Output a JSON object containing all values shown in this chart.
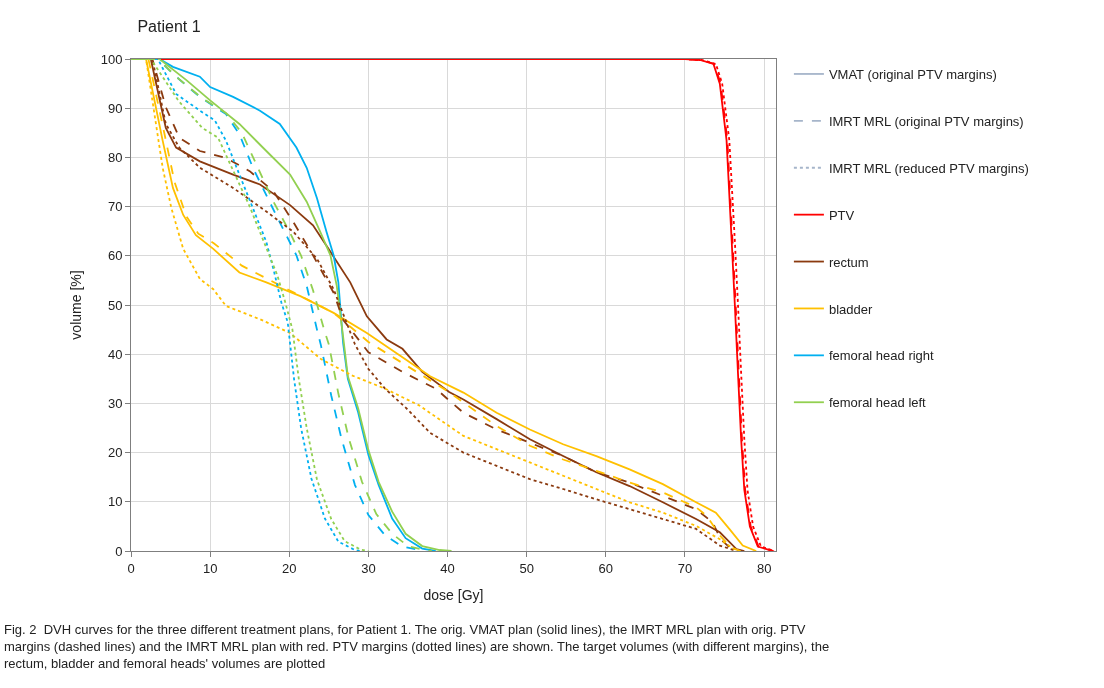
{
  "chart_data": {
    "type": "line",
    "title": "Patient 1",
    "xlabel": "dose [Gy]",
    "ylabel": "volume [%]",
    "xlim": [
      0,
      81.5
    ],
    "xticks": [
      0,
      10,
      20,
      30,
      40,
      50,
      60,
      70,
      80
    ],
    "ylim": [
      0,
      100
    ],
    "yticks": [
      0,
      10,
      20,
      30,
      40,
      50,
      60,
      70,
      80,
      90,
      100
    ],
    "grid": true,
    "legend": "right",
    "marker": "none",
    "annotations": [
      "Fig. 2  DVH curves for the three different treatment plans, for Patient 1. The orig. VMAT plan (solid lines), the IMRT MRL plan with orig. PTV margins (dashed lines) and the IMRT MRL plan with red. PTV margins (dotted lines) are shown. The target volumes (with different margins), the rectum, bladder and femoral heads' volumes are plotted"
    ],
    "series": [
      {
        "name": "VMAT (original PTV margins)",
        "color": "#a6b5ca",
        "line_style": "solid"
      },
      {
        "name": "IMRT MRL (original PTV margins)",
        "color": "#a6b5ca",
        "line_style": "dashed"
      },
      {
        "name": "IMRT MRL (reduced PTV margins)",
        "color": "#a6b5ca",
        "line_style": "dotted"
      },
      {
        "name": "PTV",
        "color": "#ff0000",
        "line_style": "solid",
        "x": [
          0,
          70,
          71.9,
          73.6,
          74.4,
          75.25,
          75.9,
          76.3,
          76.7,
          77.1,
          77.5,
          78.2,
          79.2,
          81.1
        ],
        "values": [
          100,
          100,
          99.8,
          99,
          95,
          83.5,
          63,
          50,
          36,
          22.6,
          12.4,
          5,
          0.9,
          0
        ]
      },
      {
        "name": "rectum",
        "color": "#8b3a0f",
        "line_style": "solid",
        "x": [
          0,
          2.5,
          4.4,
          5.7,
          8.7,
          12.9,
          16.3,
          20.1,
          23,
          25.2,
          27.7,
          29.8,
          32.3,
          34.3,
          36.8,
          40.2,
          42,
          46.2,
          50.4,
          54.6,
          58.8,
          63,
          67.2,
          71.4,
          74.4,
          76.5,
          77.5
        ],
        "values": [
          100,
          100,
          86,
          82,
          79.2,
          76.5,
          74.5,
          70.3,
          66.2,
          60.8,
          54.6,
          47.7,
          43,
          41.1,
          36.4,
          32.3,
          30.8,
          26.8,
          22.7,
          19.3,
          16,
          13.2,
          9.9,
          6.5,
          3.8,
          0.4,
          0
        ]
      },
      {
        "name": "bladder",
        "color": "#ffc000",
        "line_style": "solid",
        "x": [
          0,
          1.9,
          4,
          5.3,
          6.6,
          8.2,
          10.4,
          13.7,
          17.1,
          21.4,
          25.6,
          29.8,
          34.3,
          37.8,
          42,
          46.2,
          50.4,
          54.6,
          58.8,
          63,
          67.2,
          71.4,
          73.9,
          75.6,
          77.3,
          79
        ],
        "values": [
          100,
          100,
          83.4,
          73.8,
          68.3,
          64.2,
          61.4,
          56.6,
          54.6,
          51.8,
          48.4,
          44.3,
          39.4,
          35.5,
          32.2,
          28.1,
          24.7,
          21.7,
          19.3,
          16.6,
          13.6,
          9.9,
          7.8,
          4.5,
          1.1,
          0
        ]
      },
      {
        "name": "femoral head right",
        "color": "#00b0f0",
        "line_style": "solid",
        "x": [
          0,
          3.6,
          5.3,
          8.7,
          10,
          12.9,
          16.3,
          18.8,
          20.9,
          22.2,
          23.5,
          24.7,
          25.6,
          26.2,
          26.8,
          27.4,
          28.7,
          30,
          31.3,
          33,
          34.7,
          36.8,
          38.5
        ],
        "values": [
          100,
          100,
          98.4,
          96.4,
          94.3,
          92.3,
          89.5,
          86.8,
          82,
          77.9,
          71.7,
          64.9,
          60.1,
          54.6,
          42.3,
          35,
          28.2,
          19.5,
          13.4,
          6.6,
          2.6,
          0.5,
          0
        ]
      },
      {
        "name": "femoral head left",
        "color": "#92d050",
        "line_style": "solid",
        "x": [
          0,
          3.6,
          7,
          10,
          13.7,
          17.1,
          20.1,
          22.2,
          23.9,
          25.2,
          26,
          26.8,
          27.4,
          28.7,
          30,
          31.3,
          33,
          34.7,
          36.8,
          39,
          40.5
        ],
        "values": [
          100,
          100,
          95.7,
          91.6,
          86.8,
          81.3,
          76.5,
          71,
          64.9,
          60.1,
          53.9,
          43.6,
          35.5,
          29,
          20.5,
          14,
          8,
          3.5,
          1,
          0.2,
          0
        ]
      },
      {
        "color": "#ff0000",
        "line_style": "dashed",
        "x": [
          0,
          70,
          72,
          73.7,
          74.5,
          75.35,
          76,
          76.4,
          76.8,
          77.2,
          77.6,
          78.3,
          79.3,
          81.2
        ],
        "values": [
          100,
          100,
          99.8,
          99,
          95,
          83.5,
          63,
          50,
          36,
          22.6,
          12.4,
          5,
          0.9,
          0
        ]
      },
      {
        "color": "#8b3a0f",
        "line_style": "dashed",
        "x": [
          0,
          2.7,
          4.4,
          6.1,
          8.7,
          12,
          15,
          18,
          20.5,
          23,
          25.6,
          26.8,
          30,
          34.3,
          38.5,
          42,
          46.2,
          50.4,
          54.6,
          58.8,
          63,
          67.2,
          71.4,
          73.5,
          74.5,
          75.8,
          77
        ],
        "values": [
          100,
          100,
          90.2,
          84,
          81.3,
          79.9,
          77.2,
          73.1,
          66.9,
          60.1,
          52.5,
          47,
          40.4,
          36.4,
          33,
          28.1,
          24.7,
          22,
          19.3,
          16,
          13.9,
          11.2,
          8.5,
          5.8,
          2.4,
          0.5,
          0
        ]
      },
      {
        "color": "#ffc000",
        "line_style": "dashed",
        "x": [
          0,
          2.2,
          4.2,
          5.5,
          7,
          8.5,
          10.5,
          14,
          20,
          25.6,
          30,
          35,
          40,
          46.2,
          50.4,
          54.6,
          58.8,
          63,
          67.2,
          71.4,
          72.7,
          74.5,
          75.8,
          77
        ],
        "values": [
          100,
          100,
          85,
          75,
          68,
          64.5,
          62.5,
          58,
          53,
          48.4,
          42.5,
          37.5,
          32.5,
          25.4,
          21.4,
          18.6,
          16.3,
          13.9,
          11.9,
          8.9,
          7.2,
          3,
          0.7,
          0
        ]
      },
      {
        "color": "#00b0f0",
        "line_style": "dashed",
        "x": [
          0,
          3.4,
          5.7,
          8.7,
          12,
          13.7,
          15.4,
          17.5,
          19.2,
          20.9,
          22.2,
          23.5,
          24,
          25.3,
          26.6,
          28.3,
          30,
          32.1,
          34.3,
          36.4,
          37
        ],
        "values": [
          100,
          100,
          96.4,
          92.3,
          88.8,
          84.7,
          77.9,
          71,
          65.5,
          60.1,
          53.9,
          45,
          41.8,
          31.6,
          22.8,
          13.4,
          7.3,
          3.2,
          0.9,
          0.2,
          0
        ]
      },
      {
        "color": "#92d050",
        "line_style": "dashed",
        "x": [
          0,
          3.4,
          6,
          9,
          12,
          14,
          16,
          18,
          20,
          21.5,
          23,
          24.4,
          25,
          26.2,
          27.5,
          29.2,
          31,
          33,
          35,
          37,
          38
        ],
        "values": [
          100,
          100,
          96,
          92,
          89,
          85,
          78,
          71,
          65,
          60,
          53,
          45,
          42,
          32,
          23,
          14,
          7.5,
          3.5,
          1,
          0.2,
          0
        ]
      },
      {
        "color": "#ff0000",
        "line_style": "dotted",
        "x": [
          0,
          70,
          72.1,
          73.9,
          74.7,
          75.6,
          76.3,
          76.7,
          77.1,
          77.5,
          77.9,
          78.6,
          79.6,
          81.3
        ],
        "values": [
          100,
          100,
          99.8,
          99,
          95,
          83.5,
          63,
          50,
          36,
          22.6,
          12.4,
          5,
          0.9,
          0
        ]
      },
      {
        "color": "#8b3a0f",
        "line_style": "dotted",
        "x": [
          0,
          2.7,
          4.4,
          6.1,
          8.7,
          12.9,
          17.1,
          20.5,
          23.5,
          25.6,
          28.3,
          30,
          32.1,
          35,
          37.8,
          42,
          46.2,
          50.4,
          54.6,
          58.8,
          63,
          67.2,
          71.4,
          74.4,
          76.5
        ],
        "values": [
          100,
          100,
          86.8,
          82,
          77.9,
          73.8,
          69,
          64.9,
          59.4,
          53.2,
          42,
          37,
          33,
          28.7,
          24,
          20,
          17.3,
          14.6,
          12.6,
          10.5,
          8.5,
          6.5,
          4.5,
          1.1,
          0
        ]
      },
      {
        "color": "#ffc000",
        "line_style": "dotted",
        "x": [
          0,
          1.9,
          4,
          5.1,
          6.6,
          8.7,
          10.4,
          12,
          16.3,
          20.1,
          24,
          27.9,
          32.1,
          36.4,
          42,
          46.2,
          50.4,
          54.6,
          58.8,
          63,
          67.2,
          71.4,
          74.4,
          76.1,
          77
        ],
        "values": [
          100,
          100,
          77.9,
          69.7,
          61.4,
          55.3,
          53.2,
          49.8,
          47.1,
          44.3,
          39,
          35.7,
          33,
          29.6,
          23.4,
          20.7,
          18,
          15.3,
          12.6,
          9.9,
          7.8,
          5.1,
          2.4,
          0.5,
          0
        ]
      },
      {
        "color": "#00b0f0",
        "line_style": "dotted",
        "x": [
          0,
          3.4,
          5.7,
          8.7,
          10.6,
          12,
          13.7,
          15.4,
          17.1,
          18,
          19,
          19.8,
          20.6,
          21.5,
          22.8,
          24.5,
          26.2,
          28.3,
          29
        ],
        "values": [
          100,
          100,
          92.9,
          89.5,
          87.5,
          83.4,
          76.5,
          69.7,
          62.8,
          57.3,
          50.5,
          46.5,
          35,
          24.9,
          14.7,
          6.6,
          1.9,
          0.2,
          0
        ]
      },
      {
        "color": "#92d050",
        "line_style": "dotted",
        "x": [
          0,
          2.5,
          6,
          9,
          11,
          13,
          15,
          17,
          18.5,
          19.5,
          20.4,
          21.2,
          22.2,
          23.5,
          25.3,
          27,
          29,
          30
        ],
        "values": [
          100,
          100,
          91.5,
          86,
          84,
          77,
          70,
          62,
          56,
          50.5,
          45,
          35,
          25,
          14.5,
          6.5,
          2,
          0.3,
          0
        ]
      }
    ]
  }
}
